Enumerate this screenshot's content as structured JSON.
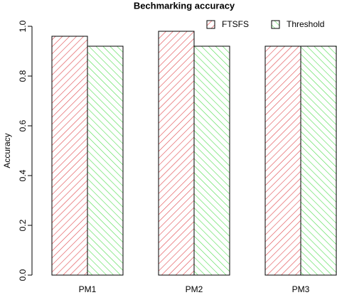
{
  "chart_data": {
    "type": "bar",
    "title": "Bechmarking accuracy",
    "y_label": "Accuracy",
    "categories": [
      "PM1",
      "PM2",
      "PM3"
    ],
    "series": [
      {
        "name": "FTSFS",
        "color": "#e0474c",
        "hatch": "up",
        "values": [
          0.96,
          0.98,
          0.92
        ]
      },
      {
        "name": "Threshold",
        "color": "#4fdc4f",
        "hatch": "down",
        "values": [
          0.92,
          0.92,
          0.92
        ]
      }
    ],
    "ylim": [
      0,
      1
    ],
    "yticks": [
      {
        "value": 0,
        "label": "0.0"
      },
      {
        "value": 0.2,
        "label": "0.2"
      },
      {
        "value": 0.4,
        "label": "0.4"
      },
      {
        "value": 0.6,
        "label": "0.6"
      },
      {
        "value": 0.8,
        "label": "0.8"
      },
      {
        "value": 1,
        "label": "1.0"
      }
    ],
    "legend": "topright"
  }
}
